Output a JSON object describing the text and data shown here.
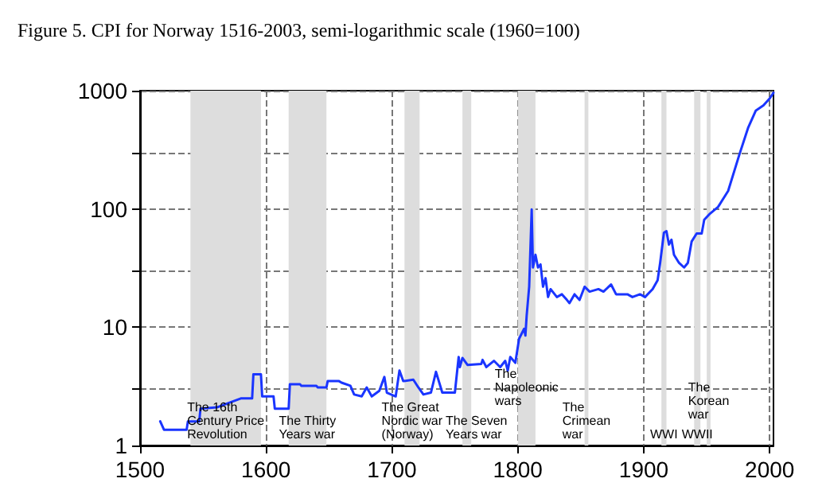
{
  "chart_data": {
    "type": "line",
    "title": "Figure 5. CPI for Norway 1516-2003, semi-logarithmic scale (1960=100)",
    "log": "y",
    "grid": true,
    "marker": "none",
    "line_style": "solid",
    "xlim": [
      1500,
      2003
    ],
    "xticks": [
      1500,
      1600,
      1700,
      1800,
      1900,
      2000
    ],
    "ylim": [
      1,
      1000
    ],
    "yticks": [
      1,
      {
        "value": 3,
        "label": null
      },
      10,
      {
        "value": 30,
        "label": null
      },
      100,
      {
        "value": 300,
        "label": null
      },
      1000
    ],
    "bands": [
      {
        "axis": "x",
        "from": 1540,
        "to": 1596,
        "color": "#dddddd",
        "label": "The 16th\nCentury Price\nRevolution"
      },
      {
        "axis": "x",
        "from": 1618,
        "to": 1648,
        "color": "#dddddd",
        "label": "The Thirty\nYears war"
      },
      {
        "axis": "x",
        "from": 1710,
        "to": 1722,
        "color": "#dddddd",
        "label": "The Great\nNordic war\n(Norway)"
      },
      {
        "axis": "x",
        "from": 1756,
        "to": 1763,
        "color": "#dddddd",
        "label": "The Seven\nYears war"
      },
      {
        "axis": "x",
        "from": 1800,
        "to": 1814,
        "color": "#dddddd",
        "label": "The\nNapoleonic\nwars"
      },
      {
        "axis": "x",
        "from": 1853,
        "to": 1856,
        "color": "#dddddd",
        "label": "The\nCrimean\nwar"
      },
      {
        "axis": "x",
        "from": 1914,
        "to": 1918,
        "color": "#dddddd",
        "label": "WWI"
      },
      {
        "axis": "x",
        "from": 1940,
        "to": 1945,
        "color": "#dddddd",
        "label": "WWII"
      },
      {
        "axis": "x",
        "from": 1950,
        "to": 1953,
        "color": "#dddddd",
        "label": "The\nKorean\nwar"
      }
    ],
    "series": [
      {
        "color": "#1a35ff",
        "x": [
          1516,
          1519,
          1537,
          1538,
          1547,
          1548,
          1561,
          1580,
          1589,
          1590,
          1596,
          1597,
          1606,
          1607,
          1618,
          1619,
          1627,
          1628,
          1640,
          1641,
          1648,
          1649,
          1658,
          1660,
          1667,
          1670,
          1676,
          1680,
          1684,
          1690,
          1694,
          1696,
          1703,
          1706,
          1709,
          1717,
          1721,
          1725,
          1731,
          1735,
          1740,
          1750,
          1753,
          1754,
          1756,
          1760,
          1771,
          1772,
          1775,
          1781,
          1786,
          1790,
          1792,
          1794,
          1798,
          1801,
          1805,
          1806,
          1807,
          1809,
          1811,
          1812,
          1814,
          1816,
          1818,
          1820,
          1822,
          1824,
          1826,
          1831,
          1835,
          1839,
          1841,
          1845,
          1849,
          1853,
          1857,
          1864,
          1868,
          1874,
          1878,
          1887,
          1891,
          1897,
          1901,
          1907,
          1911,
          1913,
          1916,
          1918,
          1920,
          1922,
          1924,
          1928,
          1932,
          1935,
          1938,
          1942,
          1946,
          1948,
          1952,
          1959,
          1967,
          1976,
          1983,
          1989,
          1995,
          2000,
          2003
        ],
        "values": [
          1.6,
          1.36,
          1.36,
          1.6,
          1.6,
          2.05,
          2.1,
          2.5,
          2.5,
          4.0,
          4.0,
          2.6,
          2.6,
          2.05,
          2.05,
          3.3,
          3.3,
          3.2,
          3.2,
          3.1,
          3.1,
          3.5,
          3.5,
          3.4,
          3.2,
          2.7,
          2.6,
          3.1,
          2.6,
          2.9,
          3.8,
          2.8,
          2.6,
          4.3,
          3.5,
          3.6,
          3.1,
          2.7,
          2.8,
          4.2,
          2.8,
          2.8,
          5.6,
          4.6,
          5.5,
          4.8,
          4.9,
          5.3,
          4.6,
          5.2,
          4.6,
          5.2,
          4.3,
          5.6,
          5.0,
          8.0,
          9.7,
          8.5,
          12.5,
          22,
          99,
          32,
          41,
          32,
          34,
          22,
          26,
          18,
          21,
          18,
          19,
          17,
          16,
          19,
          17,
          22,
          20,
          21,
          20,
          23,
          19,
          19,
          18,
          19,
          18,
          21,
          25,
          35,
          63,
          65,
          50,
          55,
          41,
          35,
          32,
          35,
          53,
          62,
          62,
          81,
          90,
          104,
          142,
          290,
          490,
          680,
          750,
          860,
          960
        ]
      }
    ]
  }
}
